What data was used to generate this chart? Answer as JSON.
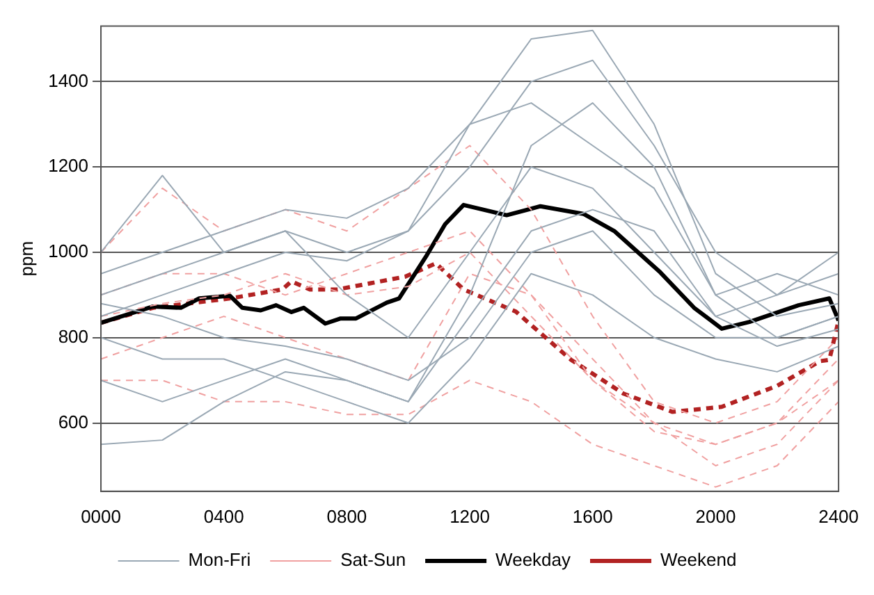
{
  "chart_data": {
    "type": "line",
    "ylabel": "ppm",
    "xlim": [
      0,
      2400
    ],
    "ylim": [
      440,
      1530
    ],
    "xticks": [
      {
        "value": 0,
        "label": "0000"
      },
      {
        "value": 400,
        "label": "0400"
      },
      {
        "value": 800,
        "label": "0800"
      },
      1200,
      1600,
      2000,
      2400
    ],
    "yticks": [
      600,
      800,
      1000,
      1200,
      1400
    ],
    "grid": "y",
    "legend": "bottom",
    "marker": "none",
    "series": [
      {
        "name": "Mon-Fri",
        "color": "#9aa8b4",
        "line_style": "solid",
        "x": [
          0,
          200,
          400,
          600,
          800,
          1000,
          1200,
          1400,
          1600,
          1800,
          2000,
          2200,
          2400
        ],
        "values": [
          850,
          900,
          950,
          1000,
          980,
          1050,
          1300,
          1500,
          1520,
          1300,
          950,
          850,
          880
        ]
      },
      {
        "color": "#9aa8b4",
        "line_style": "solid",
        "x": [
          0,
          200,
          400,
          600,
          800,
          1000,
          1200,
          1400,
          1600,
          1800,
          2000,
          2200,
          2400
        ],
        "values": [
          550,
          560,
          650,
          720,
          700,
          650,
          900,
          1250,
          1350,
          1200,
          900,
          800,
          850
        ]
      },
      {
        "color": "#9aa8b4",
        "line_style": "solid",
        "x": [
          0,
          200,
          400,
          600,
          800,
          1000,
          1200,
          1400,
          1600,
          1800,
          2000,
          2200,
          2400
        ],
        "values": [
          950,
          1000,
          1050,
          1100,
          1080,
          1150,
          1300,
          1350,
          1250,
          1150,
          900,
          950,
          900
        ]
      },
      {
        "color": "#9aa8b4",
        "line_style": "solid",
        "x": [
          0,
          200,
          400,
          600,
          800,
          1000,
          1200,
          1400,
          1600,
          1800,
          2000,
          2200,
          2400
        ],
        "values": [
          700,
          650,
          700,
          750,
          700,
          650,
          850,
          1050,
          1100,
          1050,
          850,
          780,
          820
        ]
      },
      {
        "color": "#9aa8b4",
        "line_style": "solid",
        "x": [
          0,
          200,
          400,
          600,
          800,
          1000,
          1200,
          1400,
          1600,
          1800,
          2000,
          2200,
          2400
        ],
        "values": [
          900,
          950,
          1000,
          1050,
          900,
          800,
          1000,
          1200,
          1150,
          1000,
          850,
          900,
          950
        ]
      },
      {
        "color": "#9aa8b4",
        "line_style": "solid",
        "x": [
          0,
          200,
          400,
          600,
          800,
          1000,
          1200,
          1400,
          1600,
          1800,
          2000,
          2200,
          2400
        ],
        "values": [
          800,
          750,
          750,
          700,
          650,
          600,
          750,
          950,
          900,
          800,
          750,
          720,
          780
        ]
      },
      {
        "color": "#9aa8b4",
        "line_style": "solid",
        "x": [
          0,
          200,
          400,
          600,
          800,
          1000,
          1200,
          1400,
          1600,
          1800,
          2000,
          2200,
          2400
        ],
        "values": [
          1000,
          1180,
          1000,
          1050,
          1000,
          1050,
          1200,
          1400,
          1450,
          1250,
          1000,
          900,
          1000
        ]
      },
      {
        "color": "#9aa8b4",
        "line_style": "solid",
        "x": [
          0,
          200,
          400,
          600,
          800,
          1000,
          1200,
          1400,
          1600,
          1800,
          2000,
          2200,
          2400
        ],
        "values": [
          880,
          850,
          800,
          780,
          750,
          700,
          800,
          1000,
          1050,
          900,
          800,
          800,
          850
        ]
      },
      {
        "name": "Sat-Sun",
        "color": "#f0a0a0",
        "line_style": "dashed",
        "x": [
          0,
          200,
          400,
          600,
          800,
          1000,
          1200,
          1400,
          1600,
          1800,
          2000,
          2200,
          2400
        ],
        "values": [
          1000,
          1150,
          1050,
          1100,
          1050,
          1150,
          1250,
          1100,
          850,
          650,
          600,
          650,
          800
        ]
      },
      {
        "color": "#f0a0a0",
        "line_style": "dashed",
        "x": [
          0,
          200,
          400,
          600,
          800,
          1000,
          1200,
          1400,
          1600,
          1800,
          2000,
          2200,
          2400
        ],
        "values": [
          750,
          800,
          850,
          800,
          750,
          700,
          950,
          900,
          750,
          600,
          550,
          600,
          700
        ]
      },
      {
        "color": "#f0a0a0",
        "line_style": "dashed",
        "x": [
          0,
          200,
          400,
          600,
          800,
          1000,
          1200,
          1400,
          1600,
          1800,
          2000,
          2200,
          2400
        ],
        "values": [
          900,
          950,
          950,
          900,
          950,
          1000,
          1050,
          900,
          700,
          600,
          500,
          550,
          700
        ]
      },
      {
        "color": "#f0a0a0",
        "line_style": "dashed",
        "x": [
          0,
          200,
          400,
          600,
          800,
          1000,
          1200,
          1400,
          1600,
          1800,
          2000,
          2200,
          2400
        ],
        "values": [
          700,
          700,
          650,
          650,
          620,
          620,
          700,
          650,
          550,
          500,
          450,
          500,
          650
        ]
      },
      {
        "color": "#f0a0a0",
        "line_style": "dashed",
        "x": [
          0,
          200,
          400,
          600,
          800,
          1000,
          1200,
          1400,
          1600,
          1800,
          2000,
          2200,
          2400
        ],
        "values": [
          850,
          880,
          900,
          950,
          900,
          920,
          1000,
          850,
          700,
          580,
          550,
          600,
          750
        ]
      },
      {
        "name": "Weekday",
        "color": "#000000",
        "line_style": "solid",
        "x": [
          0,
          170,
          260,
          320,
          420,
          460,
          520,
          570,
          620,
          660,
          730,
          780,
          830,
          930,
          970,
          1060,
          1120,
          1180,
          1320,
          1430,
          1570,
          1670,
          1820,
          1930,
          2020,
          2110,
          2270,
          2370,
          2400
        ],
        "values": [
          835,
          873,
          870,
          892,
          898,
          870,
          864,
          876,
          860,
          870,
          833,
          845,
          845,
          882,
          892,
          993,
          1066,
          1111,
          1087,
          1108,
          1090,
          1050,
          953,
          870,
          821,
          837,
          876,
          892,
          840
        ]
      },
      {
        "name": "Weekend",
        "color": "#b22222",
        "line_style": "dashed",
        "x": [
          0,
          170,
          420,
          590,
          620,
          680,
          770,
          880,
          990,
          1090,
          1180,
          1350,
          1530,
          1700,
          1860,
          2020,
          2200,
          2340,
          2370,
          2400
        ],
        "values": [
          835,
          870,
          892,
          913,
          932,
          913,
          913,
          928,
          943,
          974,
          913,
          861,
          748,
          669,
          626,
          638,
          687,
          745,
          748,
          840
        ]
      }
    ]
  }
}
